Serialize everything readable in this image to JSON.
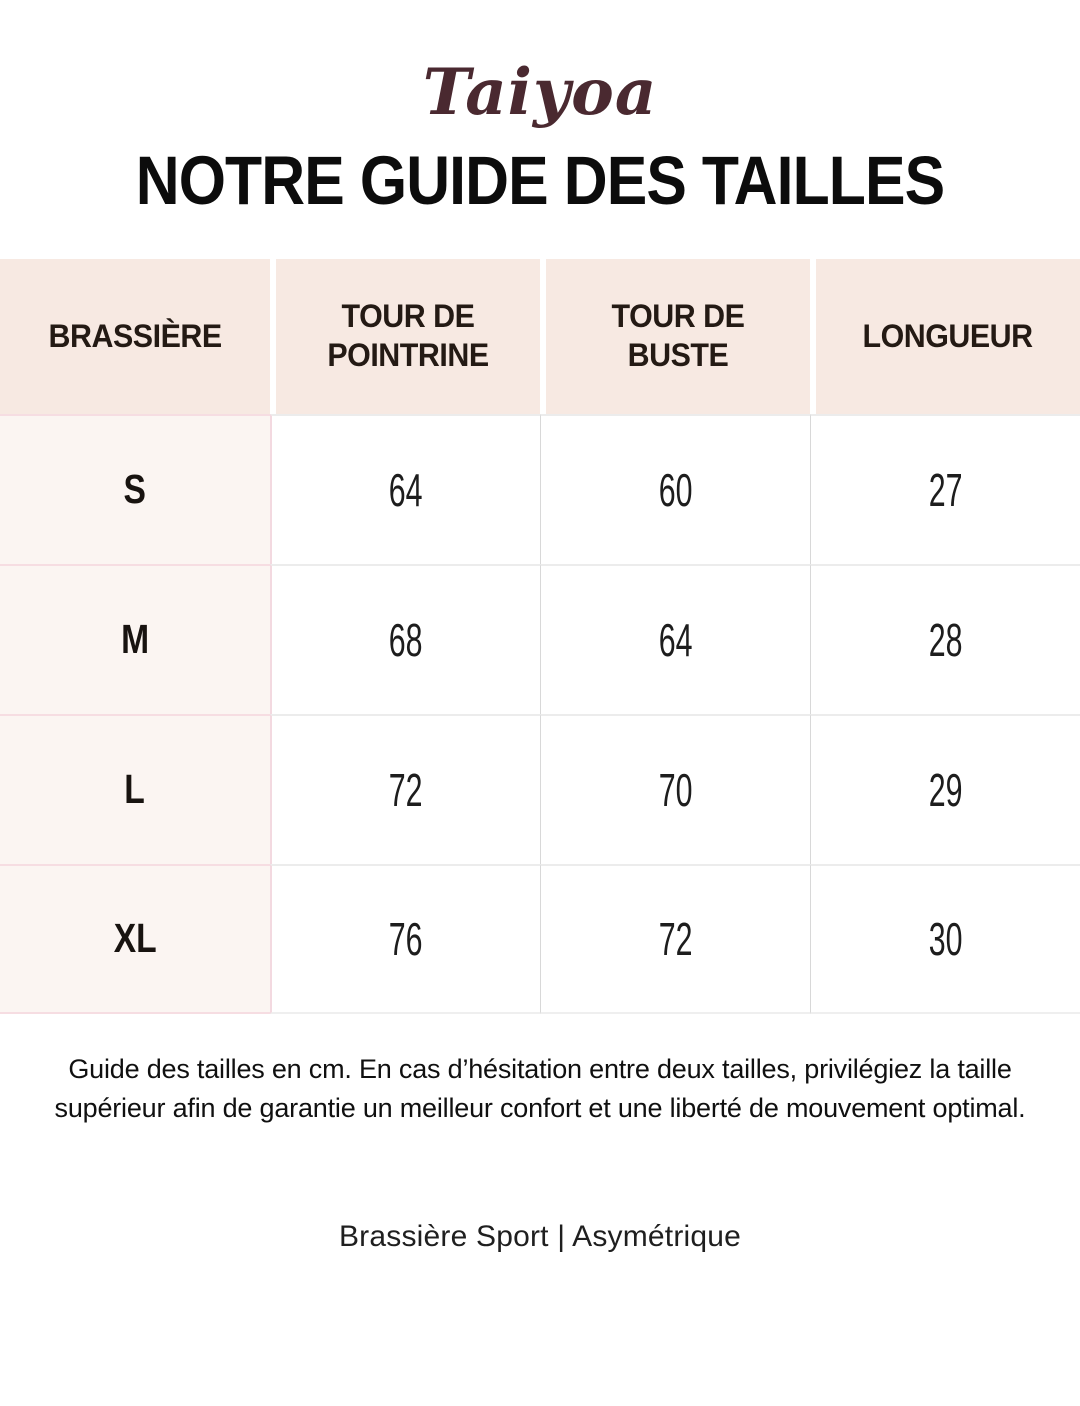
{
  "brand": {
    "logo": "Taiyoa"
  },
  "title": "NOTRE GUIDE DES TAILLES",
  "table": {
    "columns": [
      "BRASSIÈRE",
      "TOUR DE POINTRINE",
      "TOUR DE BUSTE",
      "LONGUEUR"
    ],
    "rows": [
      {
        "size": "S",
        "values": [
          "64",
          "60",
          "27"
        ]
      },
      {
        "size": "M",
        "values": [
          "68",
          "64",
          "28"
        ]
      },
      {
        "size": "L",
        "values": [
          "72",
          "70",
          "29"
        ]
      },
      {
        "size": "XL",
        "values": [
          "76",
          "72",
          "30"
        ]
      }
    ]
  },
  "note": "Guide des tailles en cm. En cas d’hésitation entre deux tailles, privilégiez la taille supérieur afin de garantie un meilleur confort et une liberté de mouvement optimal.",
  "caption": "Brassière Sport | Asymétrique",
  "colors": {
    "brand": "#4a2930",
    "title_text": "#0c0c0c",
    "header_bg": "#f7e9e2",
    "size_column_bg": "#fbf5f2",
    "pink_border": "#f3d9e0",
    "gray_border": "#d8d8d8",
    "page_bg": "#ffffff"
  }
}
